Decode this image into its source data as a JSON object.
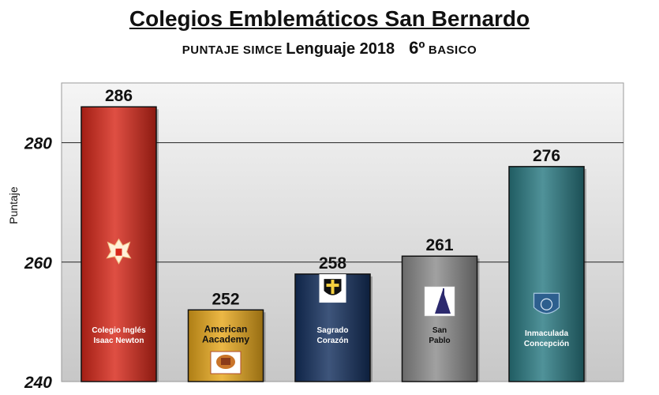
{
  "title": "Colegios Emblemáticos San Bernardo",
  "subtitle": {
    "part1": "PUNTAJE SIMCE",
    "part2": "Lenguaje 2018",
    "part3": "6º",
    "part4": "BASICO"
  },
  "colors": {
    "plot_bg_top": "#f4f4f4",
    "plot_bg_bottom": "#c9c9c9",
    "gridline": "#222222"
  },
  "chart_data": {
    "type": "bar",
    "title": "Colegios Emblemáticos San Bernardo",
    "ylabel": "Puntaje",
    "xlabel": "",
    "ylim": [
      240,
      290
    ],
    "yticks": [
      240,
      260,
      280
    ],
    "grid": true,
    "categories": [
      "Colegio Inglés Isaac Newton",
      "American Aacademy",
      "Sagrado Corazón",
      "San Pablo",
      "Inmaculada Concepción"
    ],
    "values": [
      286,
      252,
      258,
      261,
      276
    ],
    "bar_labels": [
      [
        "Colegio Inglés",
        "Isaac Newton"
      ],
      [
        "American",
        "Aacademy"
      ],
      [
        "Sagrado",
        "Corazón"
      ],
      [
        "San",
        "Pablo"
      ],
      [
        "Inmaculada",
        "Concepción"
      ]
    ],
    "bar_colors": [
      "#d8281a",
      "#e8a81c",
      "#14305e",
      "#8c8c8c",
      "#2a7a82"
    ],
    "label_colors": [
      "#ffffff",
      "#111111",
      "#ffffff",
      "#111111",
      "#ffffff"
    ],
    "icons": [
      "eagle-crest-icon",
      "academy-crest-icon",
      "shield-crest-icon",
      "ispm-logo-icon",
      "ic-crest-icon"
    ]
  }
}
